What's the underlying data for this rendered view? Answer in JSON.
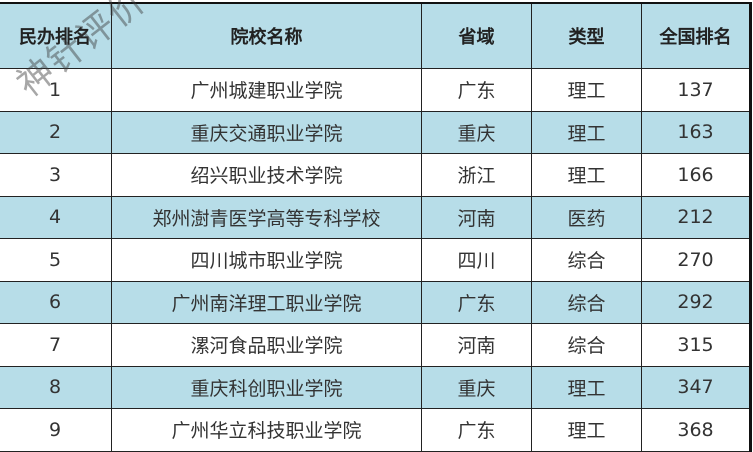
{
  "watermark": "神针评价",
  "colors": {
    "header_bg": "#b7dde8",
    "alt_row_bg": "#b7dde8"
  },
  "table": {
    "headers": [
      "民办排名",
      "院校名称",
      "省域",
      "类型",
      "全国排名"
    ],
    "rows": [
      [
        "1",
        "广州城建职业学院",
        "广东",
        "理工",
        "137"
      ],
      [
        "2",
        "重庆交通职业学院",
        "重庆",
        "理工",
        "163"
      ],
      [
        "3",
        "绍兴职业技术学院",
        "浙江",
        "理工",
        "166"
      ],
      [
        "4",
        "郑州澍青医学高等专科学校",
        "河南",
        "医药",
        "212"
      ],
      [
        "5",
        "四川城市职业学院",
        "四川",
        "综合",
        "270"
      ],
      [
        "6",
        "广州南洋理工职业学院",
        "广东",
        "综合",
        "292"
      ],
      [
        "7",
        "漯河食品职业学院",
        "河南",
        "综合",
        "315"
      ],
      [
        "8",
        "重庆科创职业学院",
        "重庆",
        "理工",
        "347"
      ],
      [
        "9",
        "广州华立科技职业学院",
        "广东",
        "理工",
        "368"
      ]
    ]
  }
}
